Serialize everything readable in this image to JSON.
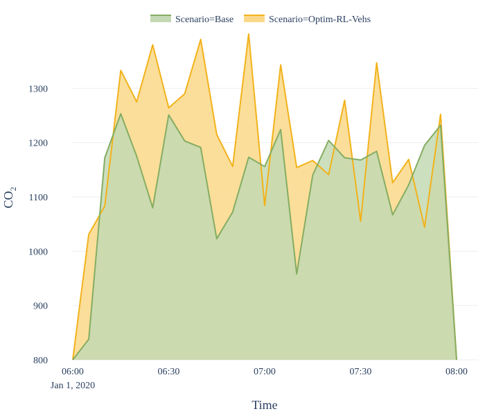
{
  "chart_data": {
    "type": "area",
    "xlabel": "Time",
    "ylabel": "CO",
    "ylabel_subscript": "2",
    "x_start": "06:00",
    "x_end": "08:00",
    "x_step_minutes": 5,
    "x_range": [
      "06:00",
      "08:00"
    ],
    "xticks": [
      "06:00",
      "06:30",
      "07:00",
      "07:30",
      "08:00"
    ],
    "x_date_label": "Jan 1, 2020",
    "ylim": [
      800,
      1400
    ],
    "yticks": [
      800,
      900,
      1000,
      1100,
      1200,
      1300
    ],
    "grid": true,
    "legend_position": "top-center",
    "series": [
      {
        "name": "Scenario=Base",
        "line_color": "#84ad62",
        "fill_color": "#c3d9b3",
        "values": [
          800,
          838,
          1172,
          1253,
          1175,
          1080,
          1251,
          1203,
          1191,
          1023,
          1072,
          1173,
          1156,
          1224,
          958,
          1140,
          1204,
          1172,
          1168,
          1184,
          1067,
          1122,
          1195,
          1232,
          800
        ]
      },
      {
        "name": "Scenario=Optim-RL-Vehs",
        "line_color": "#f2b21b",
        "fill_color": "#fad888",
        "values": [
          800,
          1031,
          1083,
          1333,
          1275,
          1380,
          1264,
          1290,
          1390,
          1215,
          1156,
          1400,
          1084,
          1343,
          1154,
          1167,
          1141,
          1278,
          1055,
          1347,
          1126,
          1169,
          1044,
          1252,
          800
        ]
      }
    ]
  }
}
